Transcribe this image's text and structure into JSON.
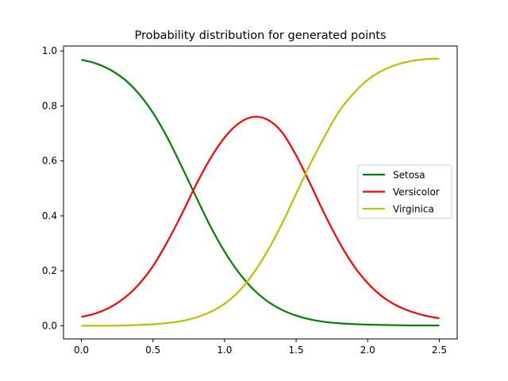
{
  "chart_data": {
    "type": "line",
    "title": "Probability distribution for generated points",
    "xlabel": "",
    "ylabel": "",
    "xlim": [
      -0.125,
      2.625
    ],
    "ylim": [
      -0.048,
      1.018
    ],
    "x_ticks": [
      0.0,
      0.5,
      1.0,
      1.5,
      2.0,
      2.5
    ],
    "x_tick_labels": [
      "0.0",
      "0.5",
      "1.0",
      "1.5",
      "2.0",
      "2.5"
    ],
    "y_ticks": [
      0.0,
      0.2,
      0.4,
      0.6,
      0.8,
      1.0
    ],
    "y_tick_labels": [
      "0.0",
      "0.2",
      "0.4",
      "0.6",
      "0.8",
      "1.0"
    ],
    "grid": false,
    "legend_position": "center-right",
    "x": [
      0.0,
      0.1,
      0.2,
      0.3,
      0.4,
      0.5,
      0.6,
      0.7,
      0.8,
      0.9,
      1.0,
      1.1,
      1.2,
      1.3,
      1.4,
      1.5,
      1.6,
      1.7,
      1.8,
      1.9,
      2.0,
      2.1,
      2.2,
      2.3,
      2.4,
      2.5
    ],
    "series": [
      {
        "name": "Setosa",
        "color": "#008000",
        "values": [
          0.968,
          0.955,
          0.932,
          0.897,
          0.845,
          0.775,
          0.685,
          0.58,
          0.47,
          0.363,
          0.27,
          0.193,
          0.133,
          0.089,
          0.058,
          0.037,
          0.023,
          0.014,
          0.009,
          0.006,
          0.004,
          0.003,
          0.002,
          0.001,
          0.001,
          0.001
        ]
      },
      {
        "name": "Versicolor",
        "color": "#ff0000",
        "values": [
          0.032,
          0.045,
          0.067,
          0.101,
          0.15,
          0.217,
          0.305,
          0.405,
          0.512,
          0.608,
          0.685,
          0.737,
          0.76,
          0.75,
          0.705,
          0.62,
          0.515,
          0.405,
          0.305,
          0.22,
          0.155,
          0.107,
          0.074,
          0.052,
          0.037,
          0.027
        ]
      },
      {
        "name": "Virginica",
        "color": "#bfbf00",
        "values": [
          0.0,
          0.0,
          0.0,
          0.001,
          0.003,
          0.005,
          0.01,
          0.017,
          0.03,
          0.05,
          0.08,
          0.125,
          0.19,
          0.272,
          0.37,
          0.48,
          0.59,
          0.69,
          0.78,
          0.845,
          0.895,
          0.928,
          0.95,
          0.963,
          0.97,
          0.972
        ]
      }
    ]
  }
}
